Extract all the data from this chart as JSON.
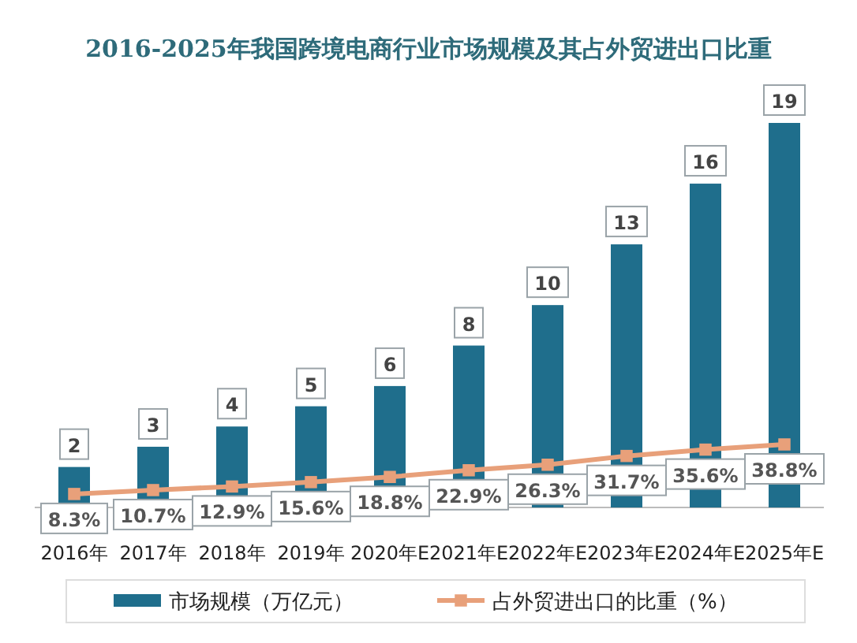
{
  "chart_data": {
    "type": "bar",
    "title": "2016-2025年我国跨境电商行业市场规模及其占外贸进出口比重",
    "categories": [
      "2016年",
      "2017年",
      "2018年",
      "2019年",
      "2020年E",
      "2021年E",
      "2022年E",
      "2023年E",
      "2024年E",
      "2025年E"
    ],
    "series": [
      {
        "name": "市场规模（万亿元）",
        "color": "#1f6e8c",
        "values": [
          2,
          3,
          4,
          5,
          6,
          8,
          10,
          13,
          16,
          19
        ]
      },
      {
        "name": "占外贸进出口的比重（%）",
        "type": "line",
        "axis": "y2",
        "color": "#e8a07a",
        "values": [
          8.3,
          10.7,
          12.9,
          15.6,
          18.8,
          22.9,
          26.3,
          31.7,
          35.6,
          38.8
        ],
        "value_labels": [
          "8.3%",
          "10.7%",
          "12.9%",
          "15.6%",
          "18.8%",
          "22.9%",
          "26.3%",
          "31.7%",
          "35.6%",
          "38.8%"
        ]
      }
    ],
    "tick_labels": "x",
    "data_labels": true,
    "marker": "square",
    "line_style": "solid",
    "legend": "bottom"
  }
}
